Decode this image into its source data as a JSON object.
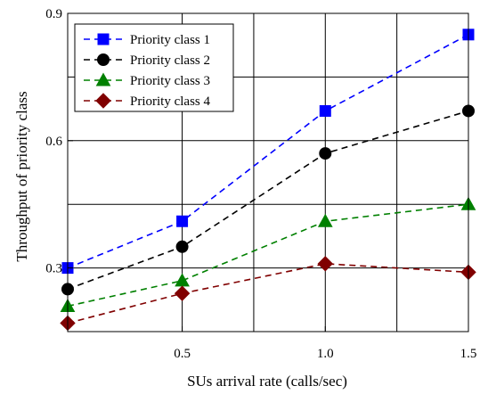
{
  "chart_data": {
    "type": "line",
    "title": "",
    "xlabel": "SUs arrival rate (calls/sec)",
    "ylabel": "Throughput of priority class",
    "xlim": [
      0.1,
      1.5
    ],
    "ylim": [
      0.15,
      0.9
    ],
    "xticks": [
      0.5,
      1.0,
      1.5
    ],
    "xtick_labels": [
      "0.5",
      "1.0",
      "1.5"
    ],
    "yticks": [
      0.3,
      0.6,
      0.9
    ],
    "ytick_labels": [
      "0.3",
      "0.6",
      "0.9"
    ],
    "x_gridlines": [
      0.5,
      0.75,
      1.0,
      1.25
    ],
    "y_gridlines": [
      0.3,
      0.45,
      0.6,
      0.75
    ],
    "grid": true,
    "legend_position": "top-left",
    "x": [
      0.1,
      0.5,
      1.0,
      1.5
    ],
    "series": [
      {
        "name": "Priority class 1",
        "values": [
          0.3,
          0.41,
          0.67,
          0.85
        ],
        "color": "#0000ff",
        "marker": "square"
      },
      {
        "name": "Priority class 2",
        "values": [
          0.25,
          0.35,
          0.57,
          0.67
        ],
        "color": "#000000",
        "marker": "circle"
      },
      {
        "name": "Priority class 3",
        "values": [
          0.21,
          0.27,
          0.41,
          0.45
        ],
        "color": "#008000",
        "marker": "triangle"
      },
      {
        "name": "Priority class 4",
        "values": [
          0.17,
          0.24,
          0.31,
          0.29
        ],
        "color": "#800000",
        "marker": "diamond"
      }
    ]
  }
}
